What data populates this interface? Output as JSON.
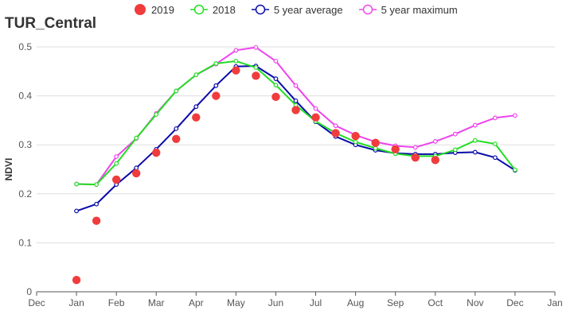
{
  "page": {
    "title": "TUR_Central"
  },
  "legend": [
    {
      "key": "s2019",
      "label": "2019",
      "color": "#f03c3c",
      "style": "marker"
    },
    {
      "key": "s2018",
      "label": "2018",
      "color": "#22dd22",
      "style": "line"
    },
    {
      "key": "avg5",
      "label": "5 year average",
      "color": "#0a0aaa",
      "style": "line"
    },
    {
      "key": "max5",
      "label": "5 year maximum",
      "color": "#ee44ee",
      "style": "line"
    }
  ],
  "chart_data": {
    "type": "line",
    "title": "TUR_Central",
    "xlabel": "",
    "ylabel": "NDVI",
    "ylim": [
      0,
      0.5
    ],
    "y_ticks": [
      0,
      0.1,
      0.2,
      0.3,
      0.4,
      0.5
    ],
    "y_tick_labels": [
      "0",
      "0.1",
      "0.2",
      "0.3",
      "0.4",
      "0.5"
    ],
    "x_ticks": [
      "Dec",
      "Jan",
      "Feb",
      "Mar",
      "Apr",
      "May",
      "Jun",
      "Jul",
      "Aug",
      "Sep",
      "Oct",
      "Nov",
      "Dec",
      "Jan"
    ],
    "xlim": [
      0,
      13
    ],
    "grid": "horizontal",
    "legend_position": "top",
    "series": [
      {
        "name": "2019",
        "kind": "scatter",
        "color": "#f03c3c",
        "x": [
          1,
          1.5,
          2,
          2.5,
          3,
          3.5,
          4,
          4.5,
          5,
          5.5,
          6,
          6.5,
          7,
          7.5,
          8,
          8.5,
          9,
          9.5,
          10
        ],
        "y": [
          0.024,
          0.145,
          0.229,
          0.242,
          0.284,
          0.312,
          0.356,
          0.4,
          0.452,
          0.441,
          0.398,
          0.371,
          0.356,
          0.324,
          0.318,
          0.304,
          0.291,
          0.274,
          0.269
        ]
      },
      {
        "name": "2018",
        "kind": "line",
        "color": "#22dd22",
        "x": [
          1,
          1.5,
          2,
          2.5,
          3,
          3.5,
          4,
          4.5,
          5,
          5.5,
          6,
          6.5,
          7,
          7.5,
          8,
          8.5,
          9,
          9.5,
          10,
          10.5,
          11,
          11.5,
          12
        ],
        "y": [
          0.22,
          0.219,
          0.262,
          0.314,
          0.362,
          0.41,
          0.443,
          0.466,
          0.471,
          0.458,
          0.422,
          0.381,
          0.348,
          0.324,
          0.306,
          0.293,
          0.282,
          0.277,
          0.277,
          0.29,
          0.309,
          0.302,
          0.249
        ]
      },
      {
        "name": "5 year average",
        "kind": "line",
        "color": "#0a0aaa",
        "x": [
          1,
          1.5,
          2,
          2.5,
          3,
          3.5,
          4,
          4.5,
          5,
          5.5,
          6,
          6.5,
          7,
          7.5,
          8,
          8.5,
          9,
          9.5,
          10,
          10.5,
          11,
          11.5,
          12
        ],
        "y": [
          0.165,
          0.179,
          0.219,
          0.253,
          0.291,
          0.333,
          0.378,
          0.421,
          0.46,
          0.461,
          0.435,
          0.39,
          0.347,
          0.317,
          0.3,
          0.289,
          0.283,
          0.281,
          0.281,
          0.284,
          0.285,
          0.274,
          0.248
        ]
      },
      {
        "name": "5 year maximum",
        "kind": "line",
        "color": "#ee44ee",
        "x": [
          1,
          1.5,
          2,
          2.5,
          3,
          3.5,
          4,
          4.5,
          5,
          5.5,
          6,
          6.5,
          7,
          7.5,
          8,
          8.5,
          9,
          9.5,
          10,
          10.5,
          11,
          11.5,
          12
        ],
        "y": [
          0.22,
          0.219,
          0.276,
          0.313,
          0.364,
          0.41,
          0.443,
          0.465,
          0.493,
          0.499,
          0.471,
          0.421,
          0.374,
          0.339,
          0.32,
          0.306,
          0.298,
          0.295,
          0.307,
          0.322,
          0.34,
          0.355,
          0.36
        ]
      }
    ]
  }
}
